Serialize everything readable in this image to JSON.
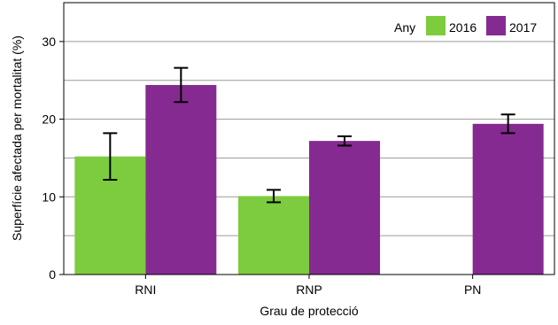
{
  "chart_data": {
    "type": "bar",
    "title": "",
    "xlabel": "Grau de protecció",
    "ylabel": "Superfície afectada per  mortalitat (%)",
    "categories": [
      "RNI",
      "RNP",
      "PN"
    ],
    "ylim": [
      0,
      35
    ],
    "yticks": [
      0,
      10,
      20,
      30
    ],
    "grid": true,
    "legend": {
      "title": "Any",
      "placement": "top-right"
    },
    "series": [
      {
        "name": "2016",
        "color": "#7dcb3e",
        "values": [
          15.2,
          10.1,
          null
        ],
        "error_low": [
          12.2,
          9.3,
          null
        ],
        "error_high": [
          18.2,
          10.9,
          null
        ]
      },
      {
        "name": "2017",
        "color": "#852a91",
        "values": [
          24.4,
          17.2,
          19.4
        ],
        "error_low": [
          22.2,
          16.6,
          18.2
        ],
        "error_high": [
          26.6,
          17.8,
          20.6
        ]
      }
    ]
  }
}
